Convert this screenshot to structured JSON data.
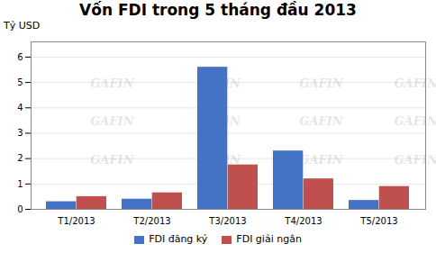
{
  "chart_data": {
    "type": "bar",
    "title": "Vốn FDI trong 5 tháng đầu 2013",
    "ylabel": "Tỷ USD",
    "categories": [
      "T1/2013",
      "T2/2013",
      "T3/2013",
      "T4/2013",
      "T5/2013"
    ],
    "series": [
      {
        "name": "FDI đăng ký",
        "color": "#4472C4",
        "values": [
          0.3,
          0.4,
          5.6,
          2.3,
          0.35
        ]
      },
      {
        "name": "FDI giải ngân",
        "color": "#C0504D",
        "values": [
          0.5,
          0.65,
          1.75,
          1.2,
          0.9
        ]
      }
    ],
    "ylim": [
      0,
      6.6
    ],
    "yticks": [
      0,
      1,
      2,
      3,
      4,
      5,
      6
    ],
    "grid": true,
    "legend": "bottom",
    "annotations": [
      "GAFIN"
    ]
  }
}
